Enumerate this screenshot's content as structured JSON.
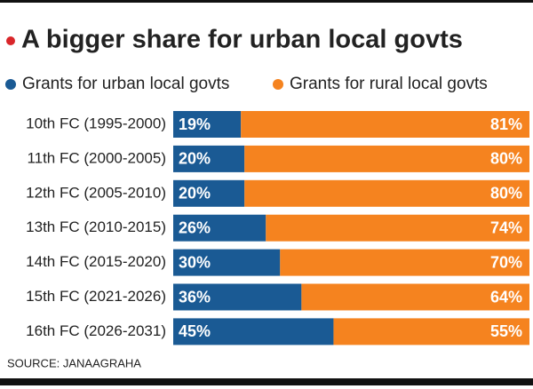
{
  "chart_data": {
    "type": "bar",
    "orientation": "horizontal",
    "stacked": true,
    "title": "A bigger share for urban local govts",
    "categories": [
      "10th FC (1995-2000)",
      "11th FC (2000-2005)",
      "12th FC (2005-2010)",
      "13th FC (2010-2015)",
      "14th FC (2015-2020)",
      "15th FC (2021-2026)",
      "16th FC (2026-2031)"
    ],
    "series": [
      {
        "name": "Grants for urban local govts",
        "color": "#1a5a94",
        "values": [
          19,
          20,
          20,
          26,
          30,
          36,
          45
        ],
        "value_labels": [
          "19%",
          "20%",
          "20%",
          "26%",
          "30%",
          "36%",
          "45%"
        ]
      },
      {
        "name": "Grants for rural local govts",
        "color": "#f5831f",
        "values": [
          81,
          80,
          80,
          74,
          70,
          64,
          55
        ],
        "value_labels": [
          "81%",
          "80%",
          "80%",
          "74%",
          "70%",
          "64%",
          "55%"
        ]
      }
    ],
    "source": "SOURCE: JANAAGRAHA"
  }
}
